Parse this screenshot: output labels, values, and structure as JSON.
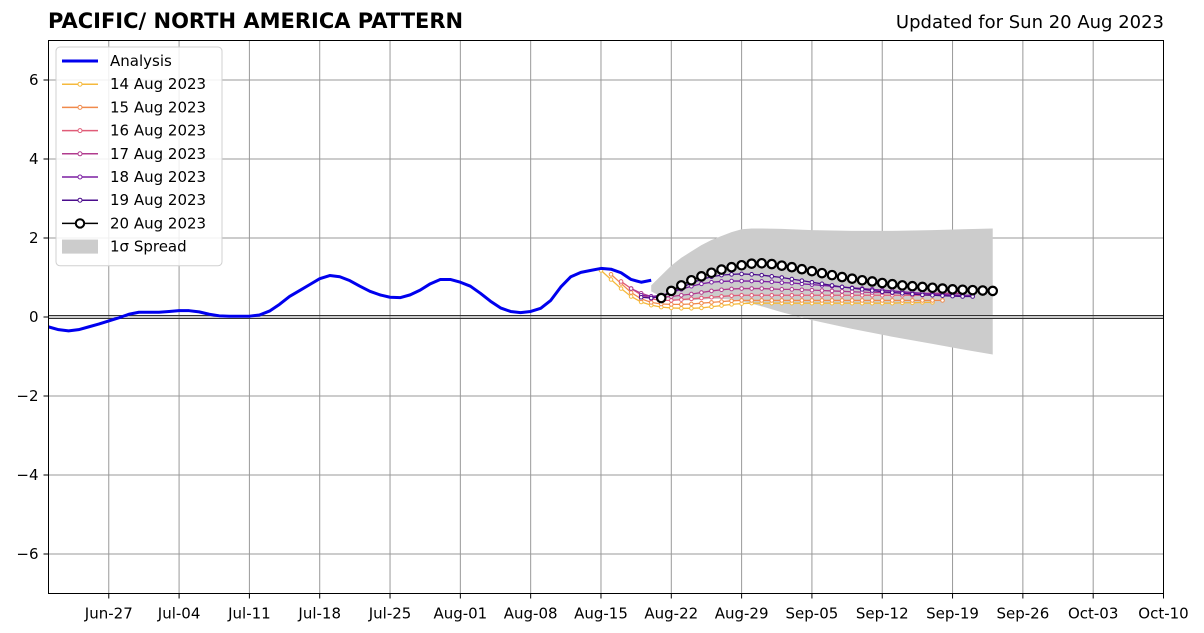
{
  "header": {
    "title": "PACIFIC/ NORTH AMERICA PATTERN",
    "updated": "Updated for Sun 20 Aug 2023"
  },
  "chart_data": {
    "type": "line",
    "title": "PACIFIC/ NORTH AMERICA PATTERN",
    "subtitle": "Updated for Sun 20 Aug 2023",
    "xlabel": "",
    "ylabel": "",
    "x_range": [
      "2023-06-21",
      "2023-10-10"
    ],
    "ylim": [
      -7,
      7
    ],
    "x_tick_labels": [
      "Jun-27",
      "Jul-04",
      "Jul-11",
      "Jul-18",
      "Jul-25",
      "Aug-01",
      "Aug-08",
      "Aug-15",
      "Aug-22",
      "Aug-29",
      "Sep-05",
      "Sep-12",
      "Sep-19",
      "Sep-26",
      "Oct-03",
      "Oct-10"
    ],
    "x_tick_dates": [
      "2023-06-27",
      "2023-07-04",
      "2023-07-11",
      "2023-07-18",
      "2023-07-25",
      "2023-08-01",
      "2023-08-08",
      "2023-08-15",
      "2023-08-22",
      "2023-08-29",
      "2023-09-05",
      "2023-09-12",
      "2023-09-19",
      "2023-09-26",
      "2023-10-03",
      "2023-10-10"
    ],
    "y_ticks": [
      -6,
      -4,
      -2,
      0,
      2,
      4,
      6
    ],
    "y_tick_labels": [
      "−6",
      "−4",
      "−2",
      "0",
      "2",
      "4",
      "6"
    ],
    "grid": true,
    "legend_position": "top-left",
    "analysis": {
      "name": "Analysis",
      "color": "#0000ee",
      "points": [
        [
          "2023-06-21",
          -0.25
        ],
        [
          "2023-06-22",
          -0.32
        ],
        [
          "2023-06-23",
          -0.35
        ],
        [
          "2023-06-24",
          -0.32
        ],
        [
          "2023-06-25",
          -0.25
        ],
        [
          "2023-06-26",
          -0.18
        ],
        [
          "2023-06-27",
          -0.1
        ],
        [
          "2023-06-28",
          -0.02
        ],
        [
          "2023-06-29",
          0.07
        ],
        [
          "2023-06-30",
          0.12
        ],
        [
          "2023-07-01",
          0.12
        ],
        [
          "2023-07-02",
          0.12
        ],
        [
          "2023-07-03",
          0.14
        ],
        [
          "2023-07-04",
          0.16
        ],
        [
          "2023-07-05",
          0.16
        ],
        [
          "2023-07-06",
          0.13
        ],
        [
          "2023-07-07",
          0.07
        ],
        [
          "2023-07-08",
          0.03
        ],
        [
          "2023-07-09",
          0.02
        ],
        [
          "2023-07-10",
          0.02
        ],
        [
          "2023-07-11",
          0.02
        ],
        [
          "2023-07-12",
          0.05
        ],
        [
          "2023-07-13",
          0.15
        ],
        [
          "2023-07-14",
          0.32
        ],
        [
          "2023-07-15",
          0.52
        ],
        [
          "2023-07-16",
          0.67
        ],
        [
          "2023-07-17",
          0.82
        ],
        [
          "2023-07-18",
          0.97
        ],
        [
          "2023-07-19",
          1.05
        ],
        [
          "2023-07-20",
          1.02
        ],
        [
          "2023-07-21",
          0.92
        ],
        [
          "2023-07-22",
          0.78
        ],
        [
          "2023-07-23",
          0.65
        ],
        [
          "2023-07-24",
          0.56
        ],
        [
          "2023-07-25",
          0.5
        ],
        [
          "2023-07-26",
          0.49
        ],
        [
          "2023-07-27",
          0.56
        ],
        [
          "2023-07-28",
          0.68
        ],
        [
          "2023-07-29",
          0.84
        ],
        [
          "2023-07-30",
          0.95
        ],
        [
          "2023-07-31",
          0.95
        ],
        [
          "2023-08-01",
          0.88
        ],
        [
          "2023-08-02",
          0.78
        ],
        [
          "2023-08-03",
          0.6
        ],
        [
          "2023-08-04",
          0.4
        ],
        [
          "2023-08-05",
          0.23
        ],
        [
          "2023-08-06",
          0.14
        ],
        [
          "2023-08-07",
          0.11
        ],
        [
          "2023-08-08",
          0.14
        ],
        [
          "2023-08-09",
          0.22
        ],
        [
          "2023-08-10",
          0.42
        ],
        [
          "2023-08-11",
          0.76
        ],
        [
          "2023-08-12",
          1.02
        ],
        [
          "2023-08-13",
          1.13
        ],
        [
          "2023-08-14",
          1.18
        ],
        [
          "2023-08-15",
          1.23
        ],
        [
          "2023-08-16",
          1.21
        ],
        [
          "2023-08-17",
          1.12
        ],
        [
          "2023-08-18",
          0.95
        ],
        [
          "2023-08-19",
          0.88
        ],
        [
          "2023-08-20",
          0.93
        ]
      ]
    },
    "series": [
      {
        "name": "14 Aug 2023",
        "color": "#f5b93c",
        "start": "2023-08-15",
        "values": [
          1.18,
          0.95,
          0.72,
          0.52,
          0.38,
          0.3,
          0.25,
          0.23,
          0.22,
          0.22,
          0.23,
          0.26,
          0.29,
          0.32,
          0.34,
          0.35,
          0.35,
          0.35,
          0.35,
          0.35,
          0.35,
          0.35,
          0.35,
          0.35,
          0.35,
          0.35,
          0.35,
          0.35,
          0.35,
          0.35,
          0.36,
          0.36,
          0.37,
          0.37
        ]
      },
      {
        "name": "15 Aug 2023",
        "color": "#f08a4b",
        "start": "2023-08-16",
        "values": [
          1.08,
          0.85,
          0.62,
          0.46,
          0.37,
          0.33,
          0.32,
          0.32,
          0.33,
          0.35,
          0.37,
          0.39,
          0.41,
          0.42,
          0.42,
          0.42,
          0.42,
          0.42,
          0.42,
          0.42,
          0.42,
          0.42,
          0.42,
          0.42,
          0.42,
          0.42,
          0.42,
          0.42,
          0.42,
          0.42,
          0.42,
          0.42,
          0.42,
          0.42
        ]
      },
      {
        "name": "16 Aug 2023",
        "color": "#e05c78",
        "start": "2023-08-17",
        "values": [
          0.9,
          0.72,
          0.56,
          0.46,
          0.42,
          0.42,
          0.44,
          0.46,
          0.48,
          0.5,
          0.52,
          0.54,
          0.55,
          0.55,
          0.55,
          0.55,
          0.55,
          0.55,
          0.55,
          0.55,
          0.55,
          0.55,
          0.55,
          0.55,
          0.55,
          0.55,
          0.55,
          0.55,
          0.55,
          0.55,
          0.55,
          0.55,
          0.55,
          0.55
        ]
      },
      {
        "name": "17 Aug 2023",
        "color": "#b13b8e",
        "start": "2023-08-18",
        "values": [
          0.72,
          0.6,
          0.52,
          0.5,
          0.52,
          0.55,
          0.58,
          0.62,
          0.66,
          0.69,
          0.71,
          0.72,
          0.72,
          0.72,
          0.71,
          0.7,
          0.7,
          0.69,
          0.68,
          0.67,
          0.66,
          0.65,
          0.64,
          0.63,
          0.62,
          0.62,
          0.61,
          0.61,
          0.6,
          0.6,
          0.6,
          0.6,
          0.6,
          0.6
        ]
      },
      {
        "name": "18 Aug 2023",
        "color": "#7b1fa2",
        "start": "2023-08-19",
        "values": [
          0.55,
          0.52,
          0.55,
          0.62,
          0.7,
          0.78,
          0.84,
          0.88,
          0.9,
          0.91,
          0.91,
          0.91,
          0.9,
          0.89,
          0.87,
          0.86,
          0.84,
          0.82,
          0.8,
          0.78,
          0.76,
          0.74,
          0.72,
          0.7,
          0.68,
          0.66,
          0.64,
          0.62,
          0.6,
          0.58,
          0.57,
          0.56,
          0.55,
          0.55
        ]
      },
      {
        "name": "19 Aug 2023",
        "color": "#4a0c8c",
        "start": "2023-08-19",
        "values": [
          0.5,
          0.48,
          0.52,
          0.62,
          0.74,
          0.86,
          0.95,
          1.02,
          1.06,
          1.08,
          1.09,
          1.08,
          1.06,
          1.03,
          1.0,
          0.96,
          0.92,
          0.88,
          0.84,
          0.8,
          0.76,
          0.73,
          0.7,
          0.67,
          0.64,
          0.62,
          0.6,
          0.58,
          0.56,
          0.55,
          0.54,
          0.53,
          0.52,
          0.52
        ]
      }
    ],
    "forecast_latest": {
      "name": "20 Aug 2023",
      "color": "#000000",
      "start": "2023-08-21",
      "values": [
        0.48,
        0.66,
        0.8,
        0.93,
        1.03,
        1.12,
        1.2,
        1.26,
        1.31,
        1.35,
        1.36,
        1.34,
        1.3,
        1.26,
        1.21,
        1.16,
        1.11,
        1.06,
        1.01,
        0.97,
        0.93,
        0.9,
        0.86,
        0.83,
        0.8,
        0.78,
        0.76,
        0.74,
        0.72,
        0.7,
        0.69,
        0.68,
        0.67,
        0.66
      ]
    },
    "spread": {
      "name": "1σ Spread",
      "color": "#cccccc",
      "points": [
        [
          "2023-08-20",
          0.8,
          0.65
        ],
        [
          "2023-08-21",
          1.05,
          0.52
        ],
        [
          "2023-08-22",
          1.3,
          0.45
        ],
        [
          "2023-08-23",
          1.5,
          0.42
        ],
        [
          "2023-08-24",
          1.66,
          0.42
        ],
        [
          "2023-08-25",
          1.82,
          0.44
        ],
        [
          "2023-08-26",
          1.95,
          0.46
        ],
        [
          "2023-08-27",
          2.05,
          0.46
        ],
        [
          "2023-08-28",
          2.15,
          0.44
        ],
        [
          "2023-08-29",
          2.22,
          0.4
        ],
        [
          "2023-08-30",
          2.24,
          0.34
        ],
        [
          "2023-08-31",
          2.24,
          0.27
        ],
        [
          "2023-09-02",
          2.23,
          0.12
        ],
        [
          "2023-09-05",
          2.2,
          -0.08
        ],
        [
          "2023-09-09",
          2.18,
          -0.3
        ],
        [
          "2023-09-13",
          2.18,
          -0.5
        ],
        [
          "2023-09-17",
          2.2,
          -0.68
        ],
        [
          "2023-09-20",
          2.22,
          -0.82
        ],
        [
          "2023-09-23",
          2.24,
          -0.95
        ]
      ]
    }
  }
}
